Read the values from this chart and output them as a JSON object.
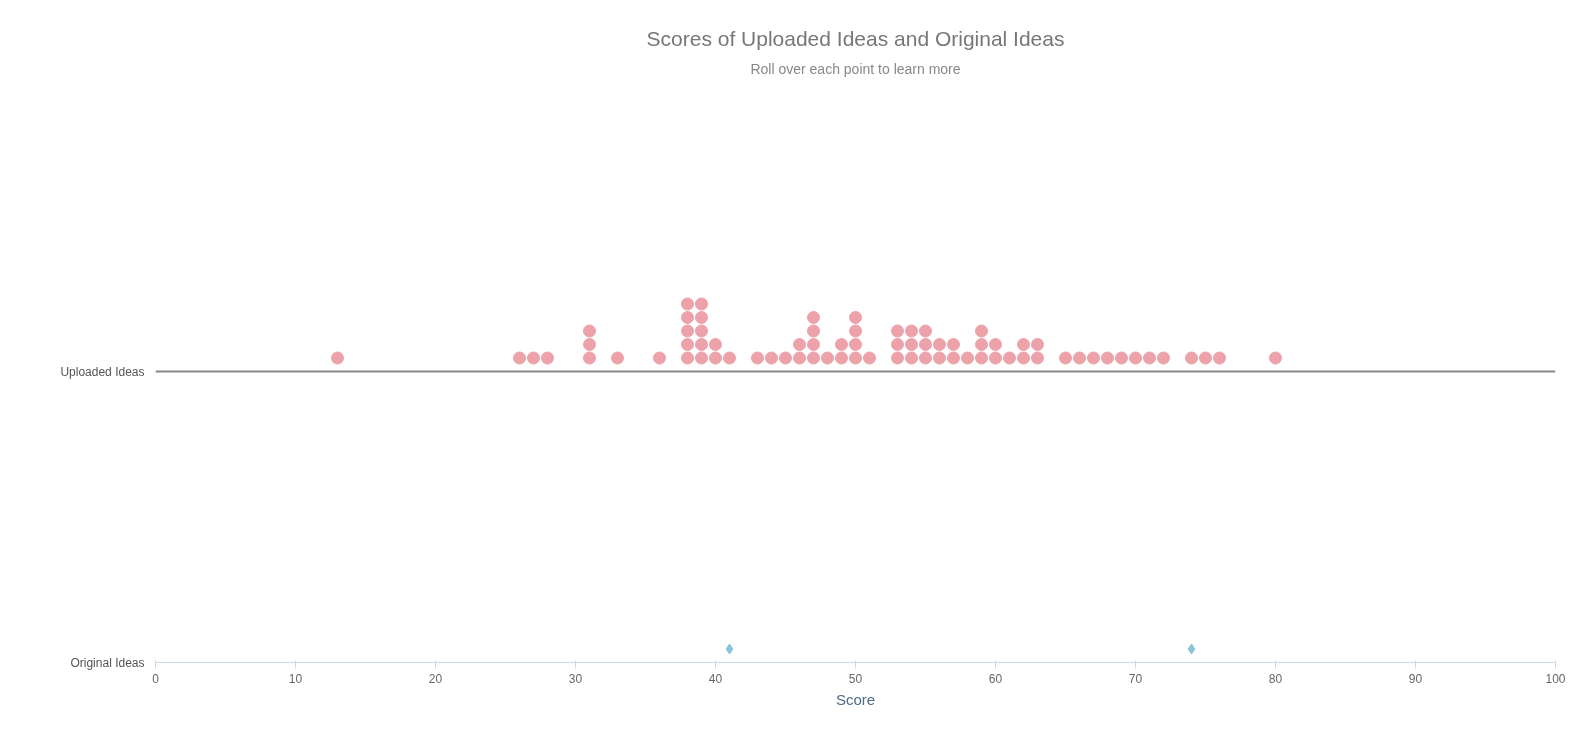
{
  "chart_data": {
    "type": "scatter",
    "orientation": "horizontal",
    "title": "Scores of Uploaded Ideas and Original Ideas",
    "subtitle": "Roll over each point to learn more",
    "xlabel": "Score",
    "categories": [
      "Uploaded Ideas",
      "Original Ideas"
    ],
    "series": [
      {
        "color": "#eda1a8",
        "marker": "circle",
        "x": [
          "Uploaded Ideas",
          "Uploaded Ideas",
          "Uploaded Ideas",
          "Uploaded Ideas",
          "Uploaded Ideas",
          "Uploaded Ideas",
          "Uploaded Ideas",
          "Uploaded Ideas",
          "Uploaded Ideas",
          "Uploaded Ideas",
          "Uploaded Ideas",
          "Uploaded Ideas",
          "Uploaded Ideas",
          "Uploaded Ideas",
          "Uploaded Ideas",
          "Uploaded Ideas",
          "Uploaded Ideas",
          "Uploaded Ideas",
          "Uploaded Ideas",
          "Uploaded Ideas",
          "Uploaded Ideas",
          "Uploaded Ideas",
          "Uploaded Ideas",
          "Uploaded Ideas",
          "Uploaded Ideas",
          "Uploaded Ideas",
          "Uploaded Ideas",
          "Uploaded Ideas",
          "Uploaded Ideas",
          "Uploaded Ideas",
          "Uploaded Ideas",
          "Uploaded Ideas",
          "Uploaded Ideas",
          "Uploaded Ideas",
          "Uploaded Ideas",
          "Uploaded Ideas",
          "Uploaded Ideas",
          "Uploaded Ideas",
          "Uploaded Ideas",
          "Uploaded Ideas",
          "Uploaded Ideas",
          "Uploaded Ideas",
          "Uploaded Ideas",
          "Uploaded Ideas",
          "Uploaded Ideas",
          "Uploaded Ideas",
          "Uploaded Ideas",
          "Uploaded Ideas",
          "Uploaded Ideas",
          "Uploaded Ideas",
          "Uploaded Ideas",
          "Uploaded Ideas",
          "Uploaded Ideas",
          "Uploaded Ideas",
          "Uploaded Ideas",
          "Uploaded Ideas",
          "Uploaded Ideas",
          "Uploaded Ideas",
          "Uploaded Ideas",
          "Uploaded Ideas",
          "Uploaded Ideas",
          "Uploaded Ideas",
          "Uploaded Ideas",
          "Uploaded Ideas",
          "Uploaded Ideas",
          "Uploaded Ideas",
          "Uploaded Ideas",
          "Uploaded Ideas",
          "Uploaded Ideas",
          "Uploaded Ideas",
          "Uploaded Ideas",
          "Uploaded Ideas",
          "Uploaded Ideas",
          "Uploaded Ideas",
          "Uploaded Ideas"
        ],
        "values": [
          13,
          26,
          27,
          28,
          31,
          31,
          31,
          33,
          36,
          38,
          38,
          38,
          38,
          38,
          39,
          39,
          39,
          39,
          39,
          40,
          40,
          41,
          43,
          44,
          45,
          46,
          46,
          47,
          47,
          47,
          47,
          48,
          49,
          49,
          50,
          50,
          50,
          50,
          51,
          53,
          53,
          53,
          54,
          54,
          54,
          55,
          55,
          55,
          56,
          56,
          57,
          57,
          58,
          59,
          59,
          59,
          60,
          60,
          61,
          62,
          62,
          63,
          63,
          65,
          66,
          67,
          68,
          69,
          70,
          71,
          72,
          74,
          75,
          76,
          80
        ]
      },
      {
        "color": "#86c5dc",
        "marker": "diamond",
        "x": [
          "Original Ideas",
          "Original Ideas"
        ],
        "values": [
          41,
          74
        ]
      }
    ],
    "xlim": [
      0,
      100
    ],
    "xticks": [
      0,
      10,
      20,
      30,
      40,
      50,
      60,
      70,
      80,
      90,
      100
    ],
    "grid": "y"
  }
}
